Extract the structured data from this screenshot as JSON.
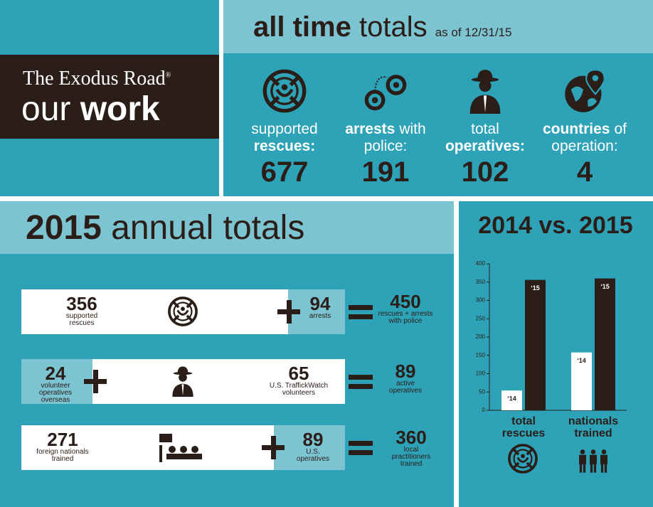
{
  "header": {
    "brand": "The Exodus Road",
    "brand_mark": "®",
    "title_light": "our",
    "title_bold": "work"
  },
  "all_time": {
    "title_bold": "all time",
    "title_light": "totals",
    "as_of": "as of 12/31/15",
    "stats": [
      {
        "label": [
          [
            {
              "text": "supported",
              "bold": false
            }
          ],
          [
            {
              "text": "rescues:",
              "bold": true
            }
          ]
        ],
        "value": 677
      },
      {
        "label": [
          [
            {
              "text": "arrests",
              "bold": true
            },
            {
              "text": "with",
              "bold": false
            }
          ],
          [
            {
              "text": "police:",
              "bold": false
            }
          ]
        ],
        "value": 191
      },
      {
        "label": [
          [
            {
              "text": "total",
              "bold": false
            }
          ],
          [
            {
              "text": "operatives:",
              "bold": true
            }
          ]
        ],
        "value": 102
      },
      {
        "label": [
          [
            {
              "text": "countries",
              "bold": true
            },
            {
              "text": "of",
              "bold": false
            }
          ],
          [
            {
              "text": "operation:",
              "bold": false
            }
          ]
        ],
        "value": 4
      }
    ]
  },
  "annual": {
    "title_bold": "2015",
    "title_light": "annual totals",
    "rows": [
      {
        "left": {
          "value": 356,
          "label": [
            "supported",
            "rescues"
          ]
        },
        "right": {
          "value": 94,
          "label": [
            "arrests"
          ]
        },
        "result": {
          "value": 450,
          "label": [
            "rescues + arrests",
            "with police"
          ]
        }
      },
      {
        "left": {
          "value": 24,
          "label": [
            "volunteer",
            "operatives",
            "overseas"
          ]
        },
        "right": {
          "value": 65,
          "label": [
            "U.S. TraffickWatch",
            "volunteers"
          ]
        },
        "result": {
          "value": 89,
          "label": [
            "active",
            "operatives"
          ]
        }
      },
      {
        "left": {
          "value": 271,
          "label": [
            "foreign nationals",
            "trained"
          ]
        },
        "right": {
          "value": 89,
          "label": [
            "U.S.",
            "operatives"
          ]
        },
        "result": {
          "value": 360,
          "label": [
            "local",
            "practitioners",
            "trained"
          ]
        }
      }
    ]
  },
  "chart_data": {
    "type": "bar",
    "title": "2014 vs. 2015",
    "categories": [
      "total rescues",
      "nationals trained"
    ],
    "series": [
      {
        "name": "‘14",
        "color": "#ffffff",
        "values": [
          54,
          158
        ]
      },
      {
        "name": "‘15",
        "color": "#2b1d17",
        "values": [
          356,
          360
        ]
      }
    ],
    "ylim": [
      0,
      400
    ],
    "yticks": [
      0,
      50,
      100,
      150,
      200,
      250,
      300,
      350,
      400
    ]
  }
}
